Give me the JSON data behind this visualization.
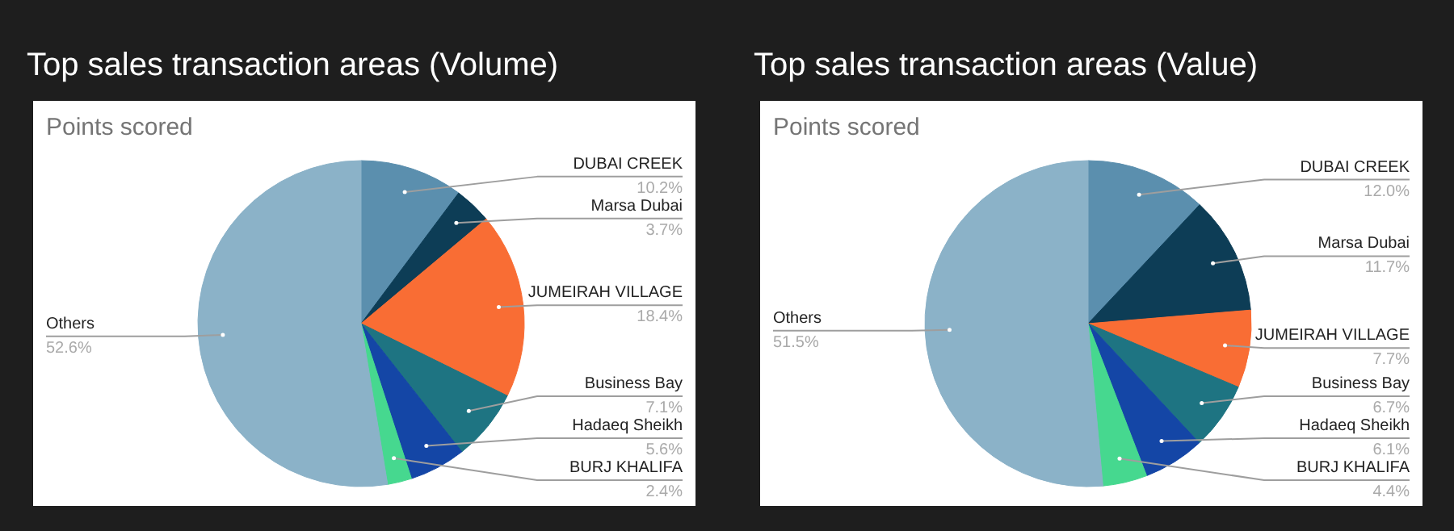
{
  "chart_data": [
    {
      "type": "pie",
      "title": "Top sales transaction areas (Volume)",
      "subtitle": "Points scored",
      "categories": [
        "DUBAI CREEK",
        "Marsa Dubai",
        "JUMEIRAH VILLAGE",
        "Business Bay",
        "Hadaeq Sheikh",
        "BURJ KHALIFA",
        "Others"
      ],
      "values": [
        10.2,
        3.7,
        18.4,
        7.1,
        5.6,
        2.4,
        52.6
      ],
      "colors": [
        "#5b8fae",
        "#0d3d56",
        "#f96d34",
        "#1e7482",
        "#1446a6",
        "#46d88f",
        "#8bb2c8"
      ],
      "value_labels": [
        "10.2%",
        "3.7%",
        "18.4%",
        "7.1%",
        "5.6%",
        "2.4%",
        "52.6%"
      ]
    },
    {
      "type": "pie",
      "title": "Top sales transaction areas (Value)",
      "subtitle": "Points scored",
      "categories": [
        "DUBAI CREEK",
        "Marsa Dubai",
        "JUMEIRAH VILLAGE",
        "Business Bay",
        "Hadaeq Sheikh",
        "BURJ KHALIFA",
        "Others"
      ],
      "values": [
        12.0,
        11.7,
        7.7,
        6.7,
        6.1,
        4.4,
        51.5
      ],
      "colors": [
        "#5b8fae",
        "#0d3d56",
        "#f96d34",
        "#1e7482",
        "#1446a6",
        "#46d88f",
        "#8bb2c8"
      ],
      "value_labels": [
        "12.0%",
        "11.7%",
        "7.7%",
        "6.7%",
        "6.1%",
        "4.4%",
        "51.5%"
      ]
    }
  ]
}
